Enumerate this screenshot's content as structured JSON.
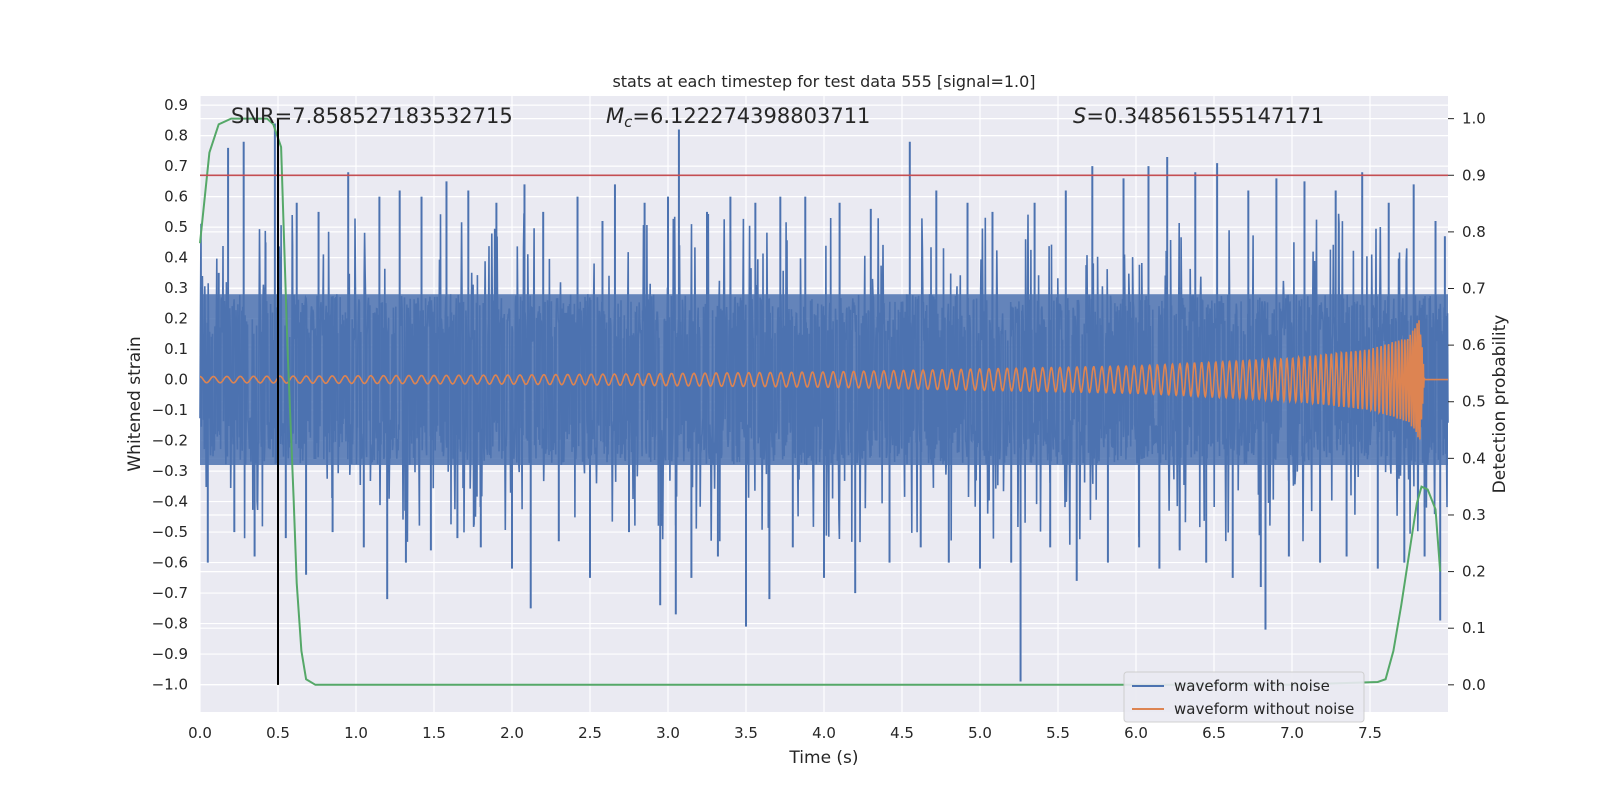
{
  "chart_data": {
    "type": "line",
    "title": "stats at each timestep for test data 555 [signal=1.0]",
    "xlabel": "Time (s)",
    "ylabel": "Whitened strain",
    "y2label": "Detection probability",
    "xlim": [
      0.0,
      8.0
    ],
    "ylim": [
      -1.09,
      0.93
    ],
    "y2lim": [
      -0.048,
      1.04
    ],
    "xticks": [
      "0.0",
      "0.5",
      "1.0",
      "1.5",
      "2.0",
      "2.5",
      "3.0",
      "3.5",
      "4.0",
      "4.5",
      "5.0",
      "5.5",
      "6.0",
      "6.5",
      "7.0",
      "7.5"
    ],
    "yticks": [
      "0.9",
      "0.8",
      "0.7",
      "0.6",
      "0.5",
      "0.4",
      "0.3",
      "0.2",
      "0.1",
      "0.0",
      "−0.1",
      "−0.2",
      "−0.3",
      "−0.4",
      "−0.5",
      "−0.6",
      "−0.7",
      "−0.8",
      "−0.9",
      "−1.0"
    ],
    "y2ticks": [
      "1.0",
      "0.9",
      "0.8",
      "0.7",
      "0.6",
      "0.5",
      "0.4",
      "0.3",
      "0.2",
      "0.1",
      "0.0"
    ],
    "grid": true,
    "legend_position": "lower-right",
    "annotations": {
      "snr": "SNR=7.858527183532715",
      "mc_symbol": "M",
      "mc_sub": "c",
      "mc_value": "=6.122274398803711",
      "s_symbol": "S",
      "s_value": "=0.348561555147171"
    },
    "series": [
      {
        "name": "waveform with noise",
        "color": "#4c72b0",
        "noise_band": [
          -0.28,
          0.28
        ],
        "spikes": [
          [
            0.05,
            -0.6
          ],
          [
            0.12,
            0.35
          ],
          [
            0.18,
            0.76
          ],
          [
            0.22,
            -0.5
          ],
          [
            0.28,
            0.78
          ],
          [
            0.35,
            -0.58
          ],
          [
            0.42,
            0.45
          ],
          [
            0.48,
            0.84
          ],
          [
            0.55,
            -0.52
          ],
          [
            0.62,
            0.58
          ],
          [
            0.68,
            -0.64
          ],
          [
            0.76,
            0.55
          ],
          [
            0.85,
            -0.5
          ],
          [
            0.95,
            0.68
          ],
          [
            1.05,
            -0.55
          ],
          [
            1.15,
            0.6
          ],
          [
            1.2,
            -0.72
          ],
          [
            1.28,
            0.62
          ],
          [
            1.32,
            -0.6
          ],
          [
            1.42,
            0.6
          ],
          [
            1.48,
            -0.56
          ],
          [
            1.58,
            0.65
          ],
          [
            1.65,
            -0.52
          ],
          [
            1.72,
            0.62
          ],
          [
            1.8,
            -0.55
          ],
          [
            1.9,
            0.58
          ],
          [
            2.0,
            -0.62
          ],
          [
            2.08,
            0.64
          ],
          [
            2.12,
            -0.75
          ],
          [
            2.2,
            0.55
          ],
          [
            2.3,
            -0.53
          ],
          [
            2.42,
            0.6
          ],
          [
            2.5,
            -0.65
          ],
          [
            2.58,
            0.52
          ],
          [
            2.66,
            0.64
          ],
          [
            2.75,
            -0.5
          ],
          [
            2.85,
            0.58
          ],
          [
            2.95,
            -0.74
          ],
          [
            3.0,
            0.6
          ],
          [
            3.05,
            -0.77
          ],
          [
            3.07,
            0.82
          ],
          [
            3.15,
            -0.65
          ],
          [
            3.25,
            0.55
          ],
          [
            3.32,
            -0.58
          ],
          [
            3.4,
            0.6
          ],
          [
            3.5,
            -0.81
          ],
          [
            3.56,
            0.58
          ],
          [
            3.65,
            -0.72
          ],
          [
            3.72,
            0.6
          ],
          [
            3.8,
            -0.55
          ],
          [
            3.88,
            0.6
          ],
          [
            4.0,
            -0.65
          ],
          [
            4.1,
            0.58
          ],
          [
            4.2,
            -0.7
          ],
          [
            4.3,
            0.56
          ],
          [
            4.42,
            -0.6
          ],
          [
            4.55,
            0.78
          ],
          [
            4.62,
            -0.55
          ],
          [
            4.72,
            0.62
          ],
          [
            4.8,
            -0.6
          ],
          [
            4.92,
            0.58
          ],
          [
            5.0,
            -0.62
          ],
          [
            5.08,
            0.55
          ],
          [
            5.2,
            -0.6
          ],
          [
            5.26,
            -0.99
          ],
          [
            5.35,
            0.58
          ],
          [
            5.45,
            -0.55
          ],
          [
            5.55,
            0.62
          ],
          [
            5.62,
            -0.66
          ],
          [
            5.72,
            0.7
          ],
          [
            5.82,
            -0.6
          ],
          [
            5.92,
            0.66
          ],
          [
            6.02,
            -0.55
          ],
          [
            6.08,
            0.7
          ],
          [
            6.15,
            -0.62
          ],
          [
            6.2,
            0.73
          ],
          [
            6.28,
            -0.56
          ],
          [
            6.38,
            0.68
          ],
          [
            6.45,
            -0.6
          ],
          [
            6.52,
            0.71
          ],
          [
            6.62,
            -0.65
          ],
          [
            6.72,
            0.62
          ],
          [
            6.8,
            -0.68
          ],
          [
            6.83,
            -0.82
          ],
          [
            6.9,
            0.66
          ],
          [
            6.98,
            -0.58
          ],
          [
            7.08,
            0.65
          ],
          [
            7.18,
            -0.6
          ],
          [
            7.28,
            0.62
          ],
          [
            7.35,
            -0.58
          ],
          [
            7.45,
            0.68
          ],
          [
            7.55,
            -0.62
          ],
          [
            7.62,
            0.58
          ],
          [
            7.72,
            -0.6
          ],
          [
            7.78,
            0.64
          ],
          [
            7.85,
            -0.58
          ],
          [
            7.92,
            0.52
          ],
          [
            7.95,
            -0.79
          ],
          [
            7.98,
            0.47
          ]
        ]
      },
      {
        "name": "waveform without noise",
        "color": "#dd8452",
        "description_points": [
          [
            0.0,
            0.01
          ],
          [
            2.0,
            0.015
          ],
          [
            4.0,
            0.025
          ],
          [
            6.0,
            0.045
          ],
          [
            7.0,
            0.07
          ],
          [
            7.5,
            0.1
          ],
          [
            7.75,
            0.14
          ],
          [
            7.82,
            0.2
          ],
          [
            7.85,
            0.0
          ],
          [
            8.0,
            0.0
          ]
        ]
      },
      {
        "axis": "right",
        "color": "#55a868",
        "points": [
          [
            0.0,
            0.78
          ],
          [
            0.06,
            0.94
          ],
          [
            0.12,
            0.99
          ],
          [
            0.2,
            1.0
          ],
          [
            0.3,
            1.0
          ],
          [
            0.43,
            1.0
          ],
          [
            0.47,
            0.99
          ],
          [
            0.52,
            0.95
          ],
          [
            0.56,
            0.6
          ],
          [
            0.6,
            0.33
          ],
          [
            0.62,
            0.18
          ],
          [
            0.65,
            0.06
          ],
          [
            0.68,
            0.01
          ],
          [
            0.74,
            0.0
          ],
          [
            1.0,
            0.0
          ],
          [
            4.0,
            0.0
          ],
          [
            7.0,
            0.0
          ],
          [
            7.55,
            0.005
          ],
          [
            7.6,
            0.01
          ],
          [
            7.65,
            0.06
          ],
          [
            7.7,
            0.14
          ],
          [
            7.75,
            0.23
          ],
          [
            7.8,
            0.32
          ],
          [
            7.83,
            0.35
          ],
          [
            7.87,
            0.345
          ],
          [
            7.92,
            0.31
          ],
          [
            7.95,
            0.2
          ]
        ]
      }
    ],
    "hlines": [
      {
        "y2": 0.9,
        "color": "#c44e52"
      }
    ],
    "vlines": [
      {
        "x": 0.5,
        "color": "#000000"
      }
    ]
  }
}
